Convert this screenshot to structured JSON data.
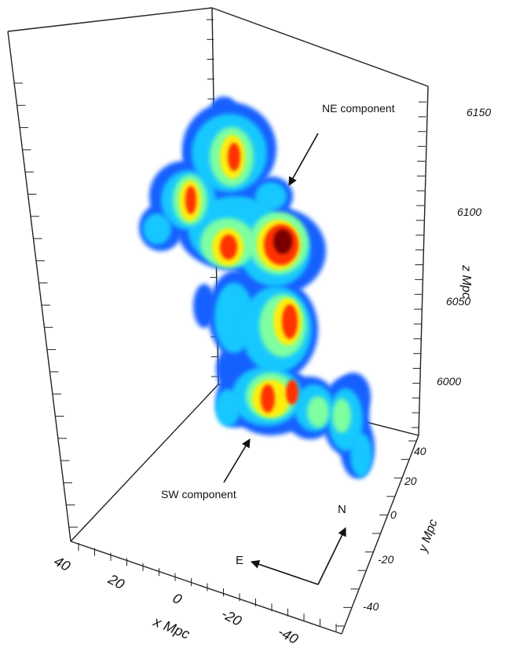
{
  "chart_data": {
    "type": "scatter",
    "title": "",
    "xlabel": "x Mpc",
    "ylabel": "y Mpc",
    "zlabel": "z Mpc",
    "xlim": [
      -40,
      40
    ],
    "ylim": [
      -40,
      40
    ],
    "zlim": [
      5975,
      6175
    ],
    "x_ticks": [
      "40",
      "20",
      "0",
      "-20",
      "-40"
    ],
    "y_ticks": [
      "40",
      "20",
      "0",
      "-20",
      "-40"
    ],
    "z_ticks": [
      "6150",
      "6100",
      "6050",
      "6000"
    ],
    "grid": false,
    "legend": "none",
    "colormap": "jet",
    "colors": {
      "low": "#1560ff",
      "mid_low": "#19c8ff",
      "mid": "#7fffa0",
      "mid_high": "#ffee10",
      "high": "#ff3300",
      "peak": "#7a0000"
    },
    "annotations": [
      {
        "text": "NE component"
      },
      {
        "text": "SW component"
      }
    ],
    "compass": {
      "north": "N",
      "east": "E"
    }
  }
}
